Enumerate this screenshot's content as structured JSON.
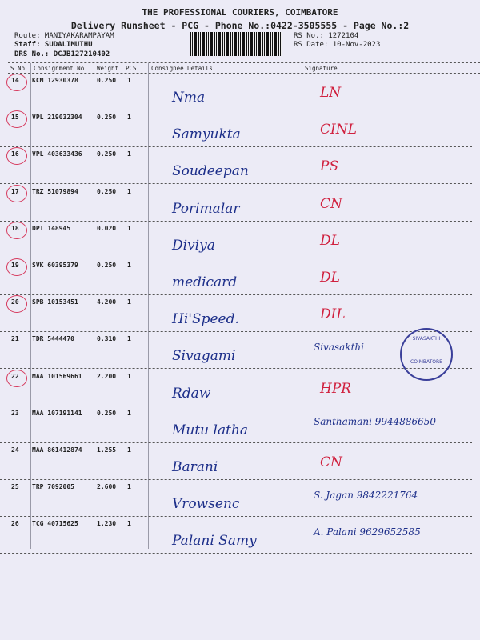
{
  "header": {
    "company": "THE PROFESSIONAL COURIERS, COIMBATORE",
    "subtitle": "Delivery Runsheet - PCG - Phone No.:0422-3505555 - Page No.:2",
    "route": "Route: MANIYAKARAMPAYAM",
    "staff": "Staff: SUDALIMUTHU",
    "drs": "DRS No.: DCJB127210402",
    "rs_no": "RS No.: 1272104",
    "rs_date": "RS Date: 10-Nov-2023"
  },
  "columns": {
    "sno": "S No",
    "consignment": "Consignment No",
    "weight": "Weight",
    "pcs": "PCS",
    "consignee": "Consignee Details",
    "signature": "Signature"
  },
  "rows": [
    {
      "sno": "14",
      "cn": "KCM 12930378",
      "wt": "0.250",
      "pcs": "1",
      "name": "Nma",
      "sig": "LN"
    },
    {
      "sno": "15",
      "cn": "VPL 219032304",
      "wt": "0.250",
      "pcs": "1",
      "name": "Samyukta",
      "sig": "CINL"
    },
    {
      "sno": "16",
      "cn": "VPL 403633436",
      "wt": "0.250",
      "pcs": "1",
      "name": "Soudeepan",
      "sig": "PS"
    },
    {
      "sno": "17",
      "cn": "TRZ 51079894",
      "wt": "0.250",
      "pcs": "1",
      "name": "Porimalar",
      "sig": "CN"
    },
    {
      "sno": "18",
      "cn": "DPI 148945",
      "wt": "0.020",
      "pcs": "1",
      "name": "Diviya",
      "sig": "DL"
    },
    {
      "sno": "19",
      "cn": "SVK 60395379",
      "wt": "0.250",
      "pcs": "1",
      "name": "medicard",
      "sig": "DL"
    },
    {
      "sno": "20",
      "cn": "SPB 10153451",
      "wt": "4.200",
      "pcs": "1",
      "name": "Hi'Speed.",
      "sig": "DIL"
    },
    {
      "sno": "21",
      "cn": "TDR 5444470",
      "wt": "0.310",
      "pcs": "1",
      "name": "Sivagami",
      "sig": "Sivasakthi"
    },
    {
      "sno": "22",
      "cn": "MAA 101569661",
      "wt": "2.200",
      "pcs": "1",
      "name": "Rdaw",
      "sig": "HPR"
    },
    {
      "sno": "23",
      "cn": "MAA 107191141",
      "wt": "0.250",
      "pcs": "1",
      "name": "Mutu latha",
      "sig": "Santhamani 9944886650"
    },
    {
      "sno": "24",
      "cn": "MAA 861412874",
      "wt": "1.255",
      "pcs": "1",
      "name": "Barani",
      "sig": "CN"
    },
    {
      "sno": "25",
      "cn": "TRP 7092005",
      "wt": "2.600",
      "pcs": "1",
      "name": "Vrowsenc",
      "sig": "S. Jagan 9842221764"
    },
    {
      "sno": "26",
      "cn": "TCG 40715625",
      "wt": "1.230",
      "pcs": "1",
      "name": "Palani Samy",
      "sig": "A. Palani 9629652585"
    }
  ],
  "stamp": {
    "line1": "SIVASAKTHI",
    "line2": "COIMBATORE"
  },
  "colors": {
    "pen_blue": "#1d2f8a",
    "pen_red": "#d0203e"
  }
}
